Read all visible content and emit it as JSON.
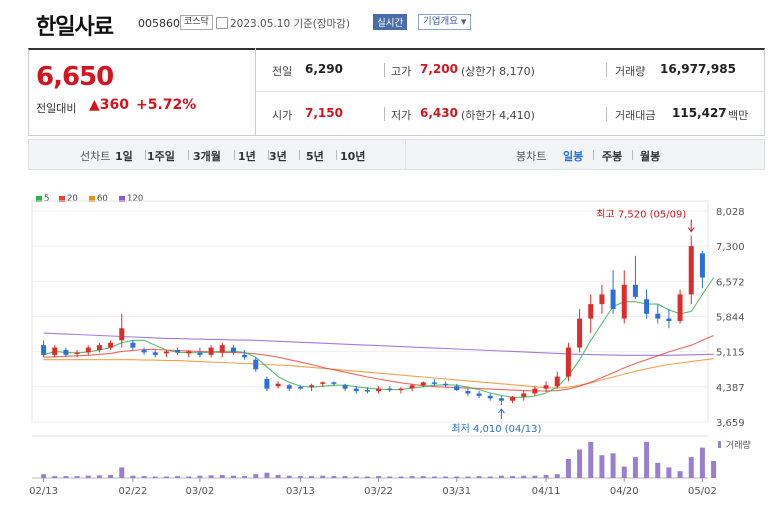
{
  "header": {
    "company": "한일사료",
    "code": "005860",
    "market": "코스닥",
    "date_text": "2023.05.10 기준(장마감)",
    "realtime_label": "실시간",
    "company_info_label": "기업개요"
  },
  "quote": {
    "price": "6,650",
    "change_label": "전일대비",
    "change_value": "▲360",
    "change_pct": "+5.72%",
    "prev_label": "전일",
    "prev_value": "6,290",
    "high_label": "고가",
    "high_value": "7,200",
    "upper_limit": "(상한가 8,170)",
    "volume_label": "거래량",
    "volume_value": "16,977,985",
    "open_label": "시가",
    "open_value": "7,150",
    "low_label": "저가",
    "low_value": "6,430",
    "lower_limit": "(하한가 4,410)",
    "amount_label": "거래대금",
    "amount_value": "115,427",
    "amount_unit": "백만"
  },
  "periods": {
    "line_label": "선차트",
    "line_items": [
      "1일",
      "1주일",
      "3개월",
      "1년",
      "3년",
      "5년",
      "10년"
    ],
    "candle_label": "봉차트",
    "candle_items": [
      "일봉",
      "주봉",
      "월봉"
    ],
    "candle_selected": "일봉"
  },
  "legend": [
    {
      "label": "5",
      "color": "#2cb34a"
    },
    {
      "label": "20",
      "color": "#e8413c"
    },
    {
      "label": "60",
      "color": "#f08c1e"
    },
    {
      "label": "120",
      "color": "#8b5cd6"
    }
  ],
  "chart_data": {
    "type": "candlestick",
    "y_ticks": [
      "8,028",
      "7,300",
      "6,572",
      "5,844",
      "5,115",
      "4,387",
      "3,659"
    ],
    "ylim": [
      3659,
      8028
    ],
    "x_labels": [
      "02/13",
      "02/22",
      "03/02",
      "03/13",
      "03/22",
      "03/31",
      "04/11",
      "04/20",
      "05/02"
    ],
    "high_annotation": "최고 7,520 (05/09)",
    "low_annotation": "최저 4,010 (04/13)",
    "volume_label": "거래량",
    "colors": {
      "up": "#e02b2b",
      "down": "#2c6fd6",
      "volume": "#9a7fd0"
    },
    "candles": [
      {
        "o": 5250,
        "h": 5350,
        "l": 5000,
        "c": 5050
      },
      {
        "o": 5050,
        "h": 5250,
        "l": 5000,
        "c": 5200
      },
      {
        "o": 5150,
        "h": 5200,
        "l": 5000,
        "c": 5050
      },
      {
        "o": 5080,
        "h": 5150,
        "l": 5000,
        "c": 5100
      },
      {
        "o": 5100,
        "h": 5250,
        "l": 5050,
        "c": 5200
      },
      {
        "o": 5150,
        "h": 5300,
        "l": 5100,
        "c": 5250
      },
      {
        "o": 5200,
        "h": 5350,
        "l": 5150,
        "c": 5300
      },
      {
        "o": 5350,
        "h": 5900,
        "l": 5200,
        "c": 5600
      },
      {
        "o": 5300,
        "h": 5350,
        "l": 5150,
        "c": 5200
      },
      {
        "o": 5150,
        "h": 5200,
        "l": 5050,
        "c": 5100
      },
      {
        "o": 5100,
        "h": 5150,
        "l": 5000,
        "c": 5050
      },
      {
        "o": 5080,
        "h": 5150,
        "l": 5000,
        "c": 5120
      },
      {
        "o": 5150,
        "h": 5200,
        "l": 5050,
        "c": 5100
      },
      {
        "o": 5080,
        "h": 5150,
        "l": 5000,
        "c": 5120
      },
      {
        "o": 5100,
        "h": 5200,
        "l": 5000,
        "c": 5050
      },
      {
        "o": 5050,
        "h": 5250,
        "l": 5000,
        "c": 5200
      },
      {
        "o": 5100,
        "h": 5300,
        "l": 5000,
        "c": 5250
      },
      {
        "o": 5200,
        "h": 5250,
        "l": 5050,
        "c": 5100
      },
      {
        "o": 5050,
        "h": 5150,
        "l": 4950,
        "c": 5000
      },
      {
        "o": 4950,
        "h": 5000,
        "l": 4700,
        "c": 4750
      },
      {
        "o": 4550,
        "h": 4600,
        "l": 4300,
        "c": 4350
      },
      {
        "o": 4400,
        "h": 4500,
        "l": 4350,
        "c": 4450
      },
      {
        "o": 4420,
        "h": 4450,
        "l": 4300,
        "c": 4350
      },
      {
        "o": 4380,
        "h": 4420,
        "l": 4330,
        "c": 4360
      },
      {
        "o": 4380,
        "h": 4450,
        "l": 4300,
        "c": 4420
      },
      {
        "o": 4450,
        "h": 4500,
        "l": 4380,
        "c": 4480
      },
      {
        "o": 4480,
        "h": 4500,
        "l": 4400,
        "c": 4450
      },
      {
        "o": 4420,
        "h": 4450,
        "l": 4300,
        "c": 4350
      },
      {
        "o": 4350,
        "h": 4400,
        "l": 4250,
        "c": 4300
      },
      {
        "o": 4320,
        "h": 4380,
        "l": 4250,
        "c": 4300
      },
      {
        "o": 4300,
        "h": 4400,
        "l": 4250,
        "c": 4350
      },
      {
        "o": 4350,
        "h": 4400,
        "l": 4280,
        "c": 4320
      },
      {
        "o": 4320,
        "h": 4380,
        "l": 4250,
        "c": 4350
      },
      {
        "o": 4360,
        "h": 4450,
        "l": 4300,
        "c": 4420
      },
      {
        "o": 4420,
        "h": 4500,
        "l": 4380,
        "c": 4480
      },
      {
        "o": 4480,
        "h": 4550,
        "l": 4400,
        "c": 4450
      },
      {
        "o": 4450,
        "h": 4500,
        "l": 4380,
        "c": 4420
      },
      {
        "o": 4400,
        "h": 4450,
        "l": 4300,
        "c": 4320
      },
      {
        "o": 4300,
        "h": 4350,
        "l": 4200,
        "c": 4250
      },
      {
        "o": 4250,
        "h": 4300,
        "l": 4150,
        "c": 4200
      },
      {
        "o": 4200,
        "h": 4250,
        "l": 4100,
        "c": 4150
      },
      {
        "o": 4150,
        "h": 4200,
        "l": 4010,
        "c": 4100
      },
      {
        "o": 4100,
        "h": 4200,
        "l": 4050,
        "c": 4180
      },
      {
        "o": 4180,
        "h": 4300,
        "l": 4100,
        "c": 4250
      },
      {
        "o": 4250,
        "h": 4400,
        "l": 4200,
        "c": 4350
      },
      {
        "o": 4350,
        "h": 4500,
        "l": 4280,
        "c": 4420
      },
      {
        "o": 4400,
        "h": 4700,
        "l": 4350,
        "c": 4600
      },
      {
        "o": 4600,
        "h": 5300,
        "l": 4500,
        "c": 5200
      },
      {
        "o": 5200,
        "h": 6000,
        "l": 5100,
        "c": 5800
      },
      {
        "o": 5800,
        "h": 6300,
        "l": 5500,
        "c": 6100
      },
      {
        "o": 6100,
        "h": 6500,
        "l": 5900,
        "c": 6300
      },
      {
        "o": 6400,
        "h": 6800,
        "l": 5900,
        "c": 6000
      },
      {
        "o": 5800,
        "h": 6800,
        "l": 5700,
        "c": 6500
      },
      {
        "o": 6500,
        "h": 7100,
        "l": 6200,
        "c": 6250
      },
      {
        "o": 6200,
        "h": 6400,
        "l": 5800,
        "c": 5900
      },
      {
        "o": 5900,
        "h": 6100,
        "l": 5700,
        "c": 5800
      },
      {
        "o": 5800,
        "h": 6000,
        "l": 5600,
        "c": 5750
      },
      {
        "o": 5750,
        "h": 6400,
        "l": 5700,
        "c": 6300
      },
      {
        "o": 6300,
        "h": 7520,
        "l": 6100,
        "c": 7300
      },
      {
        "o": 7150,
        "h": 7200,
        "l": 6430,
        "c": 6650
      }
    ],
    "volume": [
      0.1,
      0.05,
      0.05,
      0.05,
      0.06,
      0.07,
      0.08,
      0.28,
      0.06,
      0.05,
      0.04,
      0.04,
      0.05,
      0.04,
      0.06,
      0.07,
      0.08,
      0.06,
      0.05,
      0.1,
      0.14,
      0.08,
      0.06,
      0.05,
      0.05,
      0.06,
      0.05,
      0.05,
      0.04,
      0.04,
      0.05,
      0.04,
      0.04,
      0.05,
      0.05,
      0.04,
      0.04,
      0.04,
      0.04,
      0.05,
      0.04,
      0.06,
      0.05,
      0.06,
      0.06,
      0.08,
      0.1,
      0.5,
      0.75,
      0.95,
      0.6,
      0.65,
      0.3,
      0.55,
      0.95,
      0.4,
      0.28,
      0.18,
      0.55,
      0.8,
      0.45
    ],
    "ma5": [
      5050,
      5120,
      5100,
      5090,
      5110,
      5150,
      5200,
      5300,
      5350,
      5350,
      5250,
      5150,
      5100,
      5100,
      5090,
      5110,
      5120,
      5130,
      5100,
      5000,
      4800,
      4600,
      4480,
      4400,
      4380,
      4400,
      4420,
      4420,
      4390,
      4360,
      4340,
      4330,
      4330,
      4360,
      4390,
      4420,
      4430,
      4420,
      4380,
      4330,
      4260,
      4210,
      4170,
      4170,
      4200,
      4260,
      4380,
      4620,
      4950,
      5350,
      5700,
      6050,
      6150,
      6150,
      6100,
      6100,
      5980,
      5900,
      5950,
      6300,
      6650
    ],
    "ma20": [
      5000,
      5010,
      5020,
      5030,
      5040,
      5060,
      5080,
      5120,
      5140,
      5160,
      5160,
      5150,
      5140,
      5130,
      5120,
      5110,
      5100,
      5100,
      5090,
      5070,
      5040,
      5000,
      4950,
      4900,
      4850,
      4790,
      4740,
      4690,
      4640,
      4590,
      4550,
      4510,
      4470,
      4440,
      4410,
      4390,
      4380,
      4370,
      4360,
      4350,
      4340,
      4330,
      4320,
      4310,
      4300,
      4300,
      4310,
      4340,
      4400,
      4480,
      4580,
      4680,
      4780,
      4870,
      4950,
      5030,
      5110,
      5180,
      5250,
      5350,
      5450
    ],
    "ma60": [
      4950,
      4950,
      4950,
      4950,
      4950,
      4950,
      4950,
      4950,
      4950,
      4940,
      4940,
      4930,
      4930,
      4920,
      4910,
      4900,
      4890,
      4880,
      4870,
      4860,
      4850,
      4840,
      4830,
      4810,
      4790,
      4770,
      4750,
      4730,
      4710,
      4690,
      4670,
      4650,
      4630,
      4610,
      4590,
      4570,
      4550,
      4530,
      4510,
      4490,
      4470,
      4450,
      4430,
      4410,
      4390,
      4370,
      4360,
      4380,
      4420,
      4470,
      4530,
      4590,
      4650,
      4710,
      4760,
      4810,
      4850,
      4880,
      4910,
      4940,
      4970
    ],
    "ma120": [
      5500,
      5490,
      5480,
      5470,
      5460,
      5450,
      5440,
      5430,
      5420,
      5410,
      5400,
      5390,
      5385,
      5380,
      5375,
      5370,
      5365,
      5360,
      5355,
      5350,
      5340,
      5330,
      5320,
      5310,
      5300,
      5290,
      5280,
      5270,
      5260,
      5250,
      5240,
      5230,
      5220,
      5210,
      5200,
      5190,
      5180,
      5170,
      5160,
      5150,
      5140,
      5130,
      5120,
      5110,
      5100,
      5090,
      5080,
      5070,
      5060,
      5055,
      5050,
      5045,
      5040,
      5040,
      5040,
      5040,
      5040,
      5045,
      5050,
      5055,
      5060
    ]
  }
}
